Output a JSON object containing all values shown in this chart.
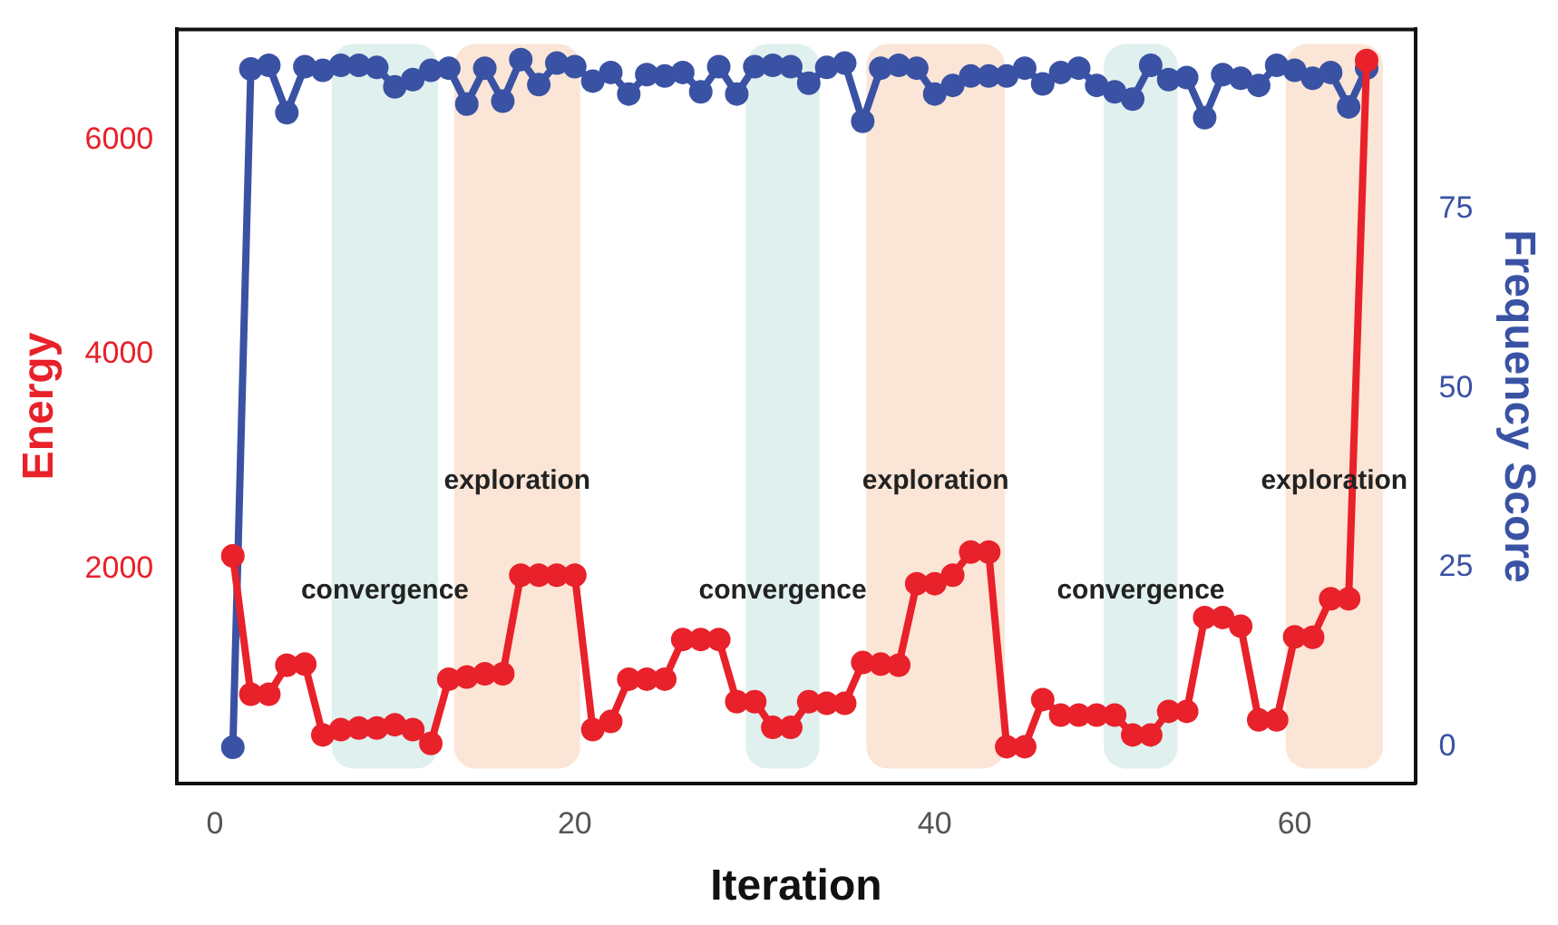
{
  "chart_data": {
    "type": "line",
    "xlabel": "Iteration",
    "ylabel": "Energy",
    "y2label": "Frequency Score",
    "x": [
      1,
      2,
      3,
      4,
      5,
      6,
      7,
      8,
      9,
      10,
      11,
      12,
      13,
      14,
      15,
      16,
      17,
      18,
      19,
      20,
      21,
      22,
      23,
      24,
      25,
      26,
      27,
      28,
      29,
      30,
      31,
      32,
      33,
      34,
      35,
      36,
      37,
      38,
      39,
      40,
      41,
      42,
      43,
      44,
      45,
      46,
      47,
      48,
      49,
      50,
      51,
      52,
      53,
      54,
      55,
      56,
      57,
      58,
      59,
      60,
      61,
      62,
      63,
      64
    ],
    "series": [
      {
        "color": "#e8212a",
        "values": [
          2120,
          830,
          830,
          1100,
          1110,
          450,
          500,
          515,
          515,
          545,
          500,
          370,
          970,
          990,
          1020,
          1020,
          1940,
          1940,
          1940,
          1940,
          500,
          575,
          970,
          970,
          970,
          1340,
          1340,
          1340,
          760,
          760,
          520,
          520,
          760,
          745,
          745,
          1125,
          1110,
          1100,
          1860,
          1860,
          1940,
          2155,
          2155,
          340,
          340,
          780,
          635,
          635,
          635,
          635,
          450,
          450,
          670,
          670,
          1545,
          1545,
          1465,
          590,
          590,
          1365,
          1360,
          1720,
          1720,
          6740
        ]
      },
      {
        "color": "#3a52a4",
        "axis": "y2",
        "values": [
          0,
          94.5,
          95,
          88.4,
          94.8,
          94.3,
          95,
          95,
          94.7,
          92,
          93,
          94.3,
          94.6,
          89.6,
          94.6,
          90,
          95.8,
          92.3,
          95.3,
          94.8,
          92.8,
          94,
          91,
          93.7,
          93.5,
          94,
          91.3,
          94.8,
          91,
          94.8,
          95,
          94.8,
          92.5,
          94.7,
          95.3,
          87.2,
          94.6,
          95,
          94.6,
          91,
          92.2,
          93.5,
          93.5,
          93.5,
          94.6,
          92.4,
          94,
          94.6,
          92.2,
          91.3,
          90.3,
          95,
          93,
          93.3,
          87.7,
          93.7,
          93.2,
          92.2,
          95,
          94.3,
          93.2,
          94,
          89.2,
          94.6
        ]
      }
    ],
    "xlim": [
      -2.1,
      66.7
    ],
    "xticks": [
      0,
      20,
      40,
      60
    ],
    "ylim": [
      0,
      7030
    ],
    "yticks": [
      2000,
      4000,
      6000
    ],
    "y2lim": [
      -5,
      100
    ],
    "y2ticks": [
      0,
      25,
      50,
      75
    ],
    "marker": "circle",
    "line_style": "solid",
    "grid": false,
    "legend": false,
    "bands": [
      {
        "axis": "x",
        "from": 6.5,
        "to": 12.4,
        "label": "convergence",
        "color": "#dff0ee"
      },
      {
        "axis": "x",
        "from": 13.3,
        "to": 20.3,
        "label": "exploration",
        "color": "#fbe5d6"
      },
      {
        "axis": "x",
        "from": 29.5,
        "to": 33.6,
        "label": "convergence",
        "color": "#dff0ee"
      },
      {
        "axis": "x",
        "from": 36.2,
        "to": 43.9,
        "label": "exploration",
        "color": "#fbe5d6"
      },
      {
        "axis": "x",
        "from": 49.4,
        "to": 53.5,
        "label": "convergence",
        "color": "#dff0ee"
      },
      {
        "axis": "x",
        "from": 59.5,
        "to": 64.9,
        "label": "exploration",
        "color": "#fbe5d6"
      }
    ]
  }
}
